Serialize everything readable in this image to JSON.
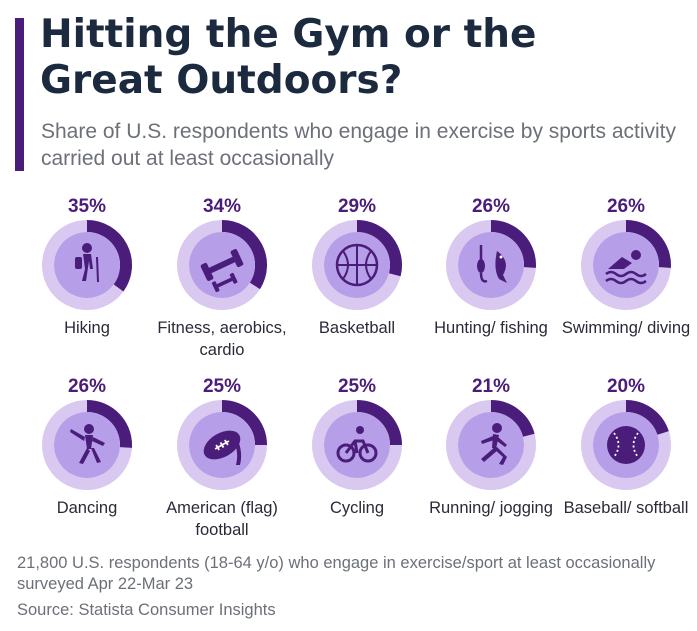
{
  "colors": {
    "accent": "#4a1d7a",
    "ring_bg": "#d9c8f0",
    "inner": "#b79ee8",
    "icon": "#4a1d7a",
    "percent": "#4a1d7a"
  },
  "header": {
    "title": "Hitting the Gym or the Great Outdoors?",
    "subtitle": "Share of U.S. respondents who engage in exercise by sports activity carried out at least occasionally"
  },
  "chart_data": {
    "type": "donut-grid",
    "unit": "%",
    "ylim": [
      0,
      100
    ],
    "categories": [
      "Hiking",
      "Fitness, aerobics, cardio",
      "Basketball",
      "Hunting/ fishing",
      "Swimming/ diving",
      "Dancing",
      "American (flag) football",
      "Cycling",
      "Running/ jogging",
      "Baseball/ softball"
    ],
    "values": [
      35,
      34,
      29,
      26,
      26,
      26,
      25,
      25,
      21,
      20
    ],
    "items": [
      {
        "label": "Hiking",
        "percent_label": "35%",
        "value": 35,
        "icon": "hiking-icon"
      },
      {
        "label": "Fitness, aerobics, cardio",
        "percent_label": "34%",
        "value": 34,
        "icon": "dumbbell-icon"
      },
      {
        "label": "Basketball",
        "percent_label": "29%",
        "value": 29,
        "icon": "basketball-icon"
      },
      {
        "label": "Hunting/ fishing",
        "percent_label": "26%",
        "value": 26,
        "icon": "fishing-icon"
      },
      {
        "label": "Swimming/ diving",
        "percent_label": "26%",
        "value": 26,
        "icon": "swimming-icon"
      },
      {
        "label": "Dancing",
        "percent_label": "26%",
        "value": 26,
        "icon": "dancing-icon"
      },
      {
        "label": "American (flag) football",
        "percent_label": "25%",
        "value": 25,
        "icon": "football-icon"
      },
      {
        "label": "Cycling",
        "percent_label": "25%",
        "value": 25,
        "icon": "cycling-icon"
      },
      {
        "label": "Running/ jogging",
        "percent_label": "21%",
        "value": 21,
        "icon": "running-icon"
      },
      {
        "label": "Baseball/ softball",
        "percent_label": "20%",
        "value": 20,
        "icon": "baseball-icon"
      }
    ]
  },
  "footer": {
    "note": "21,800 U.S. respondents (18-64 y/o) who engage in exercise/sport at least occasionally surveyed Apr 22-Mar 23",
    "source": "Source: Statista Consumer Insights"
  }
}
